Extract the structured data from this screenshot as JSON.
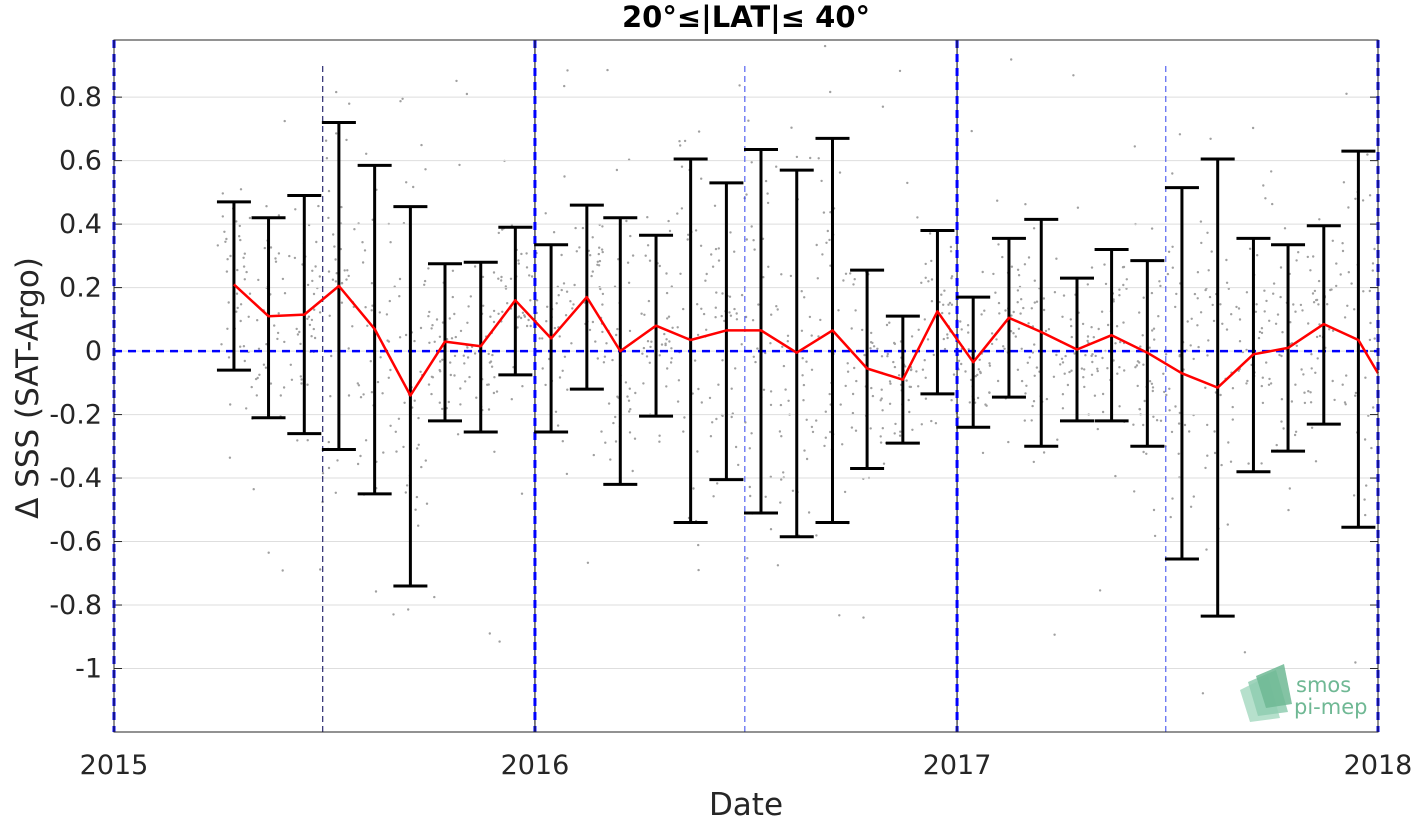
{
  "chart_data": {
    "type": "line",
    "title": "20°≤|LAT|≤ 40°",
    "xlabel": "Date",
    "ylabel": "Δ SSS (SAT-Argo)",
    "x_ticks": [
      "2015",
      "2016",
      "2017",
      "2018"
    ],
    "y_ticks": [
      "-1",
      "-0.8",
      "-0.6",
      "-0.4",
      "-0.2",
      "0",
      "0.2",
      "0.4",
      "0.6",
      "0.8"
    ],
    "xlim": [
      "2015-01-01",
      "2018-01-01"
    ],
    "ylim": [
      -1.2,
      0.98
    ],
    "grid": "horizontal",
    "series": [
      {
        "type": "line-errorbar",
        "color": "#ff0000",
        "points": [
          {
            "x": "2015-04-15",
            "y": 0.21,
            "lo": -0.06,
            "hi": 0.47
          },
          {
            "x": "2015-05-15",
            "y": 0.11,
            "lo": -0.21,
            "hi": 0.42
          },
          {
            "x": "2015-06-15",
            "y": 0.115,
            "lo": -0.26,
            "hi": 0.49
          },
          {
            "x": "2015-07-15",
            "y": 0.205,
            "lo": -0.31,
            "hi": 0.72
          },
          {
            "x": "2015-08-15",
            "y": 0.07,
            "lo": -0.45,
            "hi": 0.585
          },
          {
            "x": "2015-09-15",
            "y": -0.14,
            "lo": -0.74,
            "hi": 0.455
          },
          {
            "x": "2015-10-15",
            "y": 0.03,
            "lo": -0.22,
            "hi": 0.275
          },
          {
            "x": "2015-11-15",
            "y": 0.015,
            "lo": -0.255,
            "hi": 0.28
          },
          {
            "x": "2015-12-15",
            "y": 0.16,
            "lo": -0.075,
            "hi": 0.39
          },
          {
            "x": "2016-01-15",
            "y": 0.04,
            "lo": -0.255,
            "hi": 0.335
          },
          {
            "x": "2016-02-15",
            "y": 0.17,
            "lo": -0.12,
            "hi": 0.46
          },
          {
            "x": "2016-03-15",
            "y": 0.0,
            "lo": -0.42,
            "hi": 0.42
          },
          {
            "x": "2016-04-15",
            "y": 0.08,
            "lo": -0.205,
            "hi": 0.365
          },
          {
            "x": "2016-05-15",
            "y": 0.035,
            "lo": -0.54,
            "hi": 0.605
          },
          {
            "x": "2016-06-15",
            "y": 0.065,
            "lo": -0.405,
            "hi": 0.53
          },
          {
            "x": "2016-07-15",
            "y": 0.065,
            "lo": -0.51,
            "hi": 0.635
          },
          {
            "x": "2016-08-15",
            "y": -0.005,
            "lo": -0.585,
            "hi": 0.57
          },
          {
            "x": "2016-09-15",
            "y": 0.065,
            "lo": -0.54,
            "hi": 0.67
          },
          {
            "x": "2016-10-15",
            "y": -0.055,
            "lo": -0.37,
            "hi": 0.255
          },
          {
            "x": "2016-11-15",
            "y": -0.09,
            "lo": -0.29,
            "hi": 0.11
          },
          {
            "x": "2016-12-15",
            "y": 0.125,
            "lo": -0.135,
            "hi": 0.38
          },
          {
            "x": "2017-01-15",
            "y": -0.035,
            "lo": -0.24,
            "hi": 0.17
          },
          {
            "x": "2017-02-15",
            "y": 0.105,
            "lo": -0.145,
            "hi": 0.355
          },
          {
            "x": "2017-03-15",
            "y": 0.06,
            "lo": -0.3,
            "hi": 0.415
          },
          {
            "x": "2017-04-15",
            "y": 0.005,
            "lo": -0.22,
            "hi": 0.23
          },
          {
            "x": "2017-05-15",
            "y": 0.05,
            "lo": -0.22,
            "hi": 0.32
          },
          {
            "x": "2017-06-15",
            "y": -0.005,
            "lo": -0.3,
            "hi": 0.285
          },
          {
            "x": "2017-07-15",
            "y": -0.07,
            "lo": -0.655,
            "hi": 0.515
          },
          {
            "x": "2017-08-15",
            "y": -0.115,
            "lo": -0.835,
            "hi": 0.605
          },
          {
            "x": "2017-09-15",
            "y": -0.01,
            "lo": -0.38,
            "hi": 0.355
          },
          {
            "x": "2017-10-15",
            "y": 0.01,
            "lo": -0.315,
            "hi": 0.335
          },
          {
            "x": "2017-11-15",
            "y": 0.085,
            "lo": -0.23,
            "hi": 0.395
          },
          {
            "x": "2017-12-15",
            "y": 0.035,
            "lo": -0.555,
            "hi": 0.63
          },
          {
            "x": "2018-01-01",
            "y": -0.07
          }
        ]
      },
      {
        "type": "reference-line",
        "y": 0,
        "color": "#0000ff",
        "style": "dashed"
      }
    ],
    "vertical_lines": {
      "year": [
        "2015-01-01",
        "2016-01-01",
        "2017-01-01",
        "2018-01-01"
      ],
      "half_year": [
        "2015-07-01",
        "2016-07-01",
        "2017-07-01"
      ]
    },
    "scatter_background": {
      "color": "#a0a0a0",
      "description_of_distribution": "dense grey points spread around the monthly means, mostly within ±0.5"
    },
    "logo": {
      "lines": [
        "smos",
        "pi-mep"
      ],
      "color": "#6fb894"
    }
  }
}
